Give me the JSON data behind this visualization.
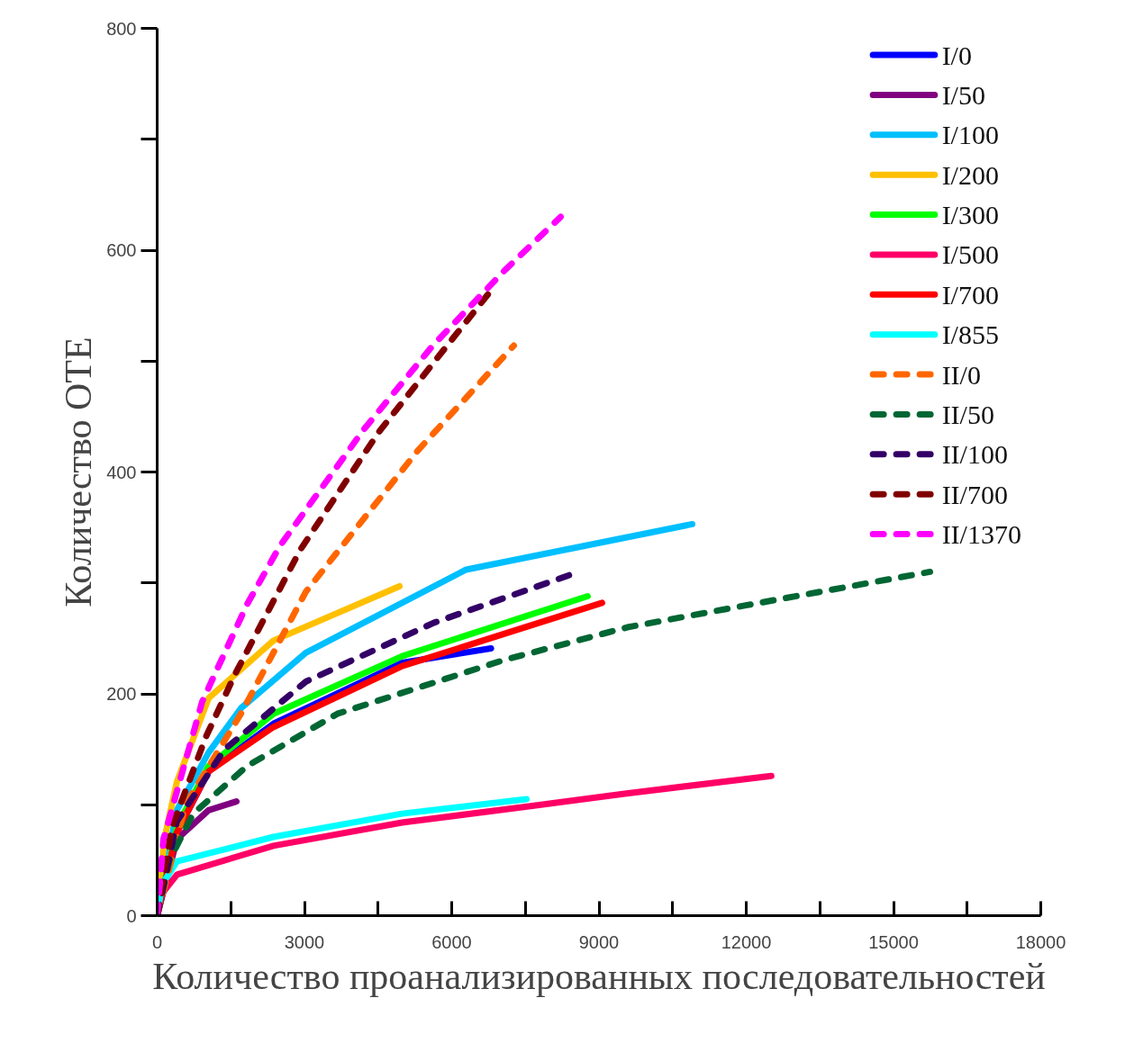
{
  "chart_data": {
    "type": "line",
    "xlabel": "Количество проанализированных последовательностей",
    "ylabel": "Количество ОТЕ",
    "xlim": [
      0,
      18000
    ],
    "ylim": [
      0,
      800
    ],
    "xticks": [
      0,
      3000,
      6000,
      9000,
      12000,
      15000,
      18000
    ],
    "yticks": [
      0,
      200,
      400,
      600,
      800
    ],
    "grid": false,
    "legend": "top right",
    "series": [
      {
        "name": "I/0",
        "color": "#0000ff",
        "line_style": "solid",
        "x": [
          0,
          400,
          1046,
          2367,
          4991,
          6800
        ],
        "values": [
          0,
          75,
          130,
          173,
          228,
          241
        ]
      },
      {
        "name": "I/50",
        "color": "#800080",
        "line_style": "solid",
        "x": [
          0,
          404,
          1046,
          1615
        ],
        "values": [
          0,
          69,
          95,
          103
        ]
      },
      {
        "name": "I/100",
        "color": "#00bfff",
        "line_style": "solid",
        "x": [
          0,
          400,
          1046,
          1706,
          3028,
          6294,
          10900
        ],
        "values": [
          0,
          95,
          147,
          187,
          237,
          312,
          353
        ]
      },
      {
        "name": "I/200",
        "color": "#ffc000",
        "line_style": "solid",
        "x": [
          0,
          150,
          404,
          1046,
          2367,
          4936
        ],
        "values": [
          0,
          70,
          121,
          196,
          248,
          297
        ]
      },
      {
        "name": "I/300",
        "color": "#00ff00",
        "line_style": "solid",
        "x": [
          0,
          400,
          1046,
          2367,
          4991,
          8770
        ],
        "values": [
          0,
          80,
          135,
          182,
          234,
          288
        ]
      },
      {
        "name": "I/500",
        "color": "#ff0066",
        "line_style": "solid",
        "x": [
          0,
          100,
          404,
          2367,
          4991,
          7468,
          9523,
          12510
        ],
        "values": [
          0,
          20,
          37,
          63,
          84,
          98,
          110,
          126
        ]
      },
      {
        "name": "I/700",
        "color": "#ff0000",
        "line_style": "solid",
        "x": [
          0,
          400,
          1046,
          2367,
          4991,
          9064
        ],
        "values": [
          0,
          75,
          130,
          170,
          225,
          282
        ]
      },
      {
        "name": "I/855",
        "color": "#00ffff",
        "line_style": "solid",
        "x": [
          0,
          100,
          404,
          2367,
          4991,
          7523
        ],
        "values": [
          0,
          28,
          49,
          71,
          92,
          105
        ]
      },
      {
        "name": "II/0",
        "color": "#ff6600",
        "line_style": "dashed",
        "x": [
          0,
          587,
          1706,
          3028,
          5303,
          7266
        ],
        "values": [
          0,
          101,
          182,
          292,
          419,
          514
        ]
      },
      {
        "name": "II/50",
        "color": "#006633",
        "line_style": "dashed",
        "x": [
          0,
          250,
          734,
          1835,
          3670,
          7028,
          9578,
          12018,
          15743
        ],
        "values": [
          0,
          50,
          92,
          135,
          182,
          230,
          260,
          280,
          310
        ]
      },
      {
        "name": "II/100",
        "color": "#330066",
        "line_style": "dashed",
        "x": [
          0,
          400,
          1376,
          3028,
          5633,
          8459
        ],
        "values": [
          0,
          85,
          150,
          211,
          264,
          308
        ]
      },
      {
        "name": "II/700",
        "color": "#800000",
        "line_style": "dashed",
        "x": [
          0,
          300,
          991,
          1578,
          2917,
          4514,
          5853,
          6807
        ],
        "values": [
          0,
          80,
          161,
          217,
          330,
          436,
          511,
          564
        ]
      },
      {
        "name": "II/1370",
        "color": "#ff00ff",
        "line_style": "dashed",
        "x": [
          0,
          128,
          917,
          1835,
          2495,
          4202,
          5615,
          7083,
          8220
        ],
        "values": [
          0,
          69,
          193,
          281,
          333,
          438,
          514,
          582,
          630
        ]
      }
    ]
  }
}
